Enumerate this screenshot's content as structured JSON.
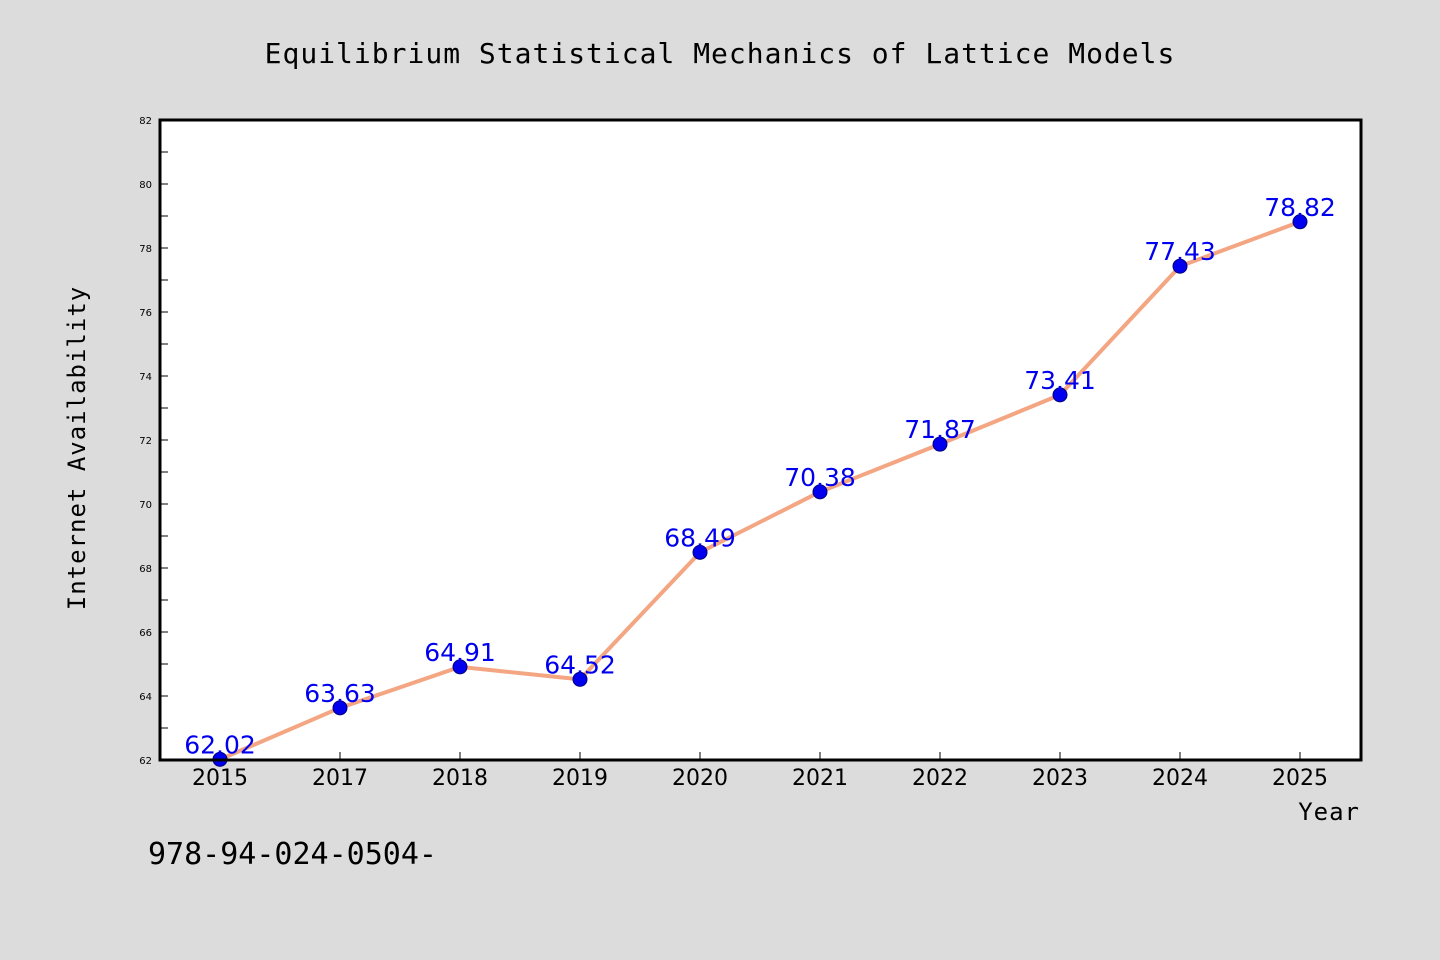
{
  "chart_data": {
    "type": "line",
    "title": "Equilibrium Statistical Mechanics of Lattice Models",
    "xlabel": "Year",
    "ylabel": "Internet Availability",
    "categories": [
      "2015",
      "2017",
      "2018",
      "2019",
      "2020",
      "2021",
      "2022",
      "2023",
      "2024",
      "2025"
    ],
    "series": [
      {
        "values": [
          62.02,
          63.63,
          64.91,
          64.52,
          68.49,
          70.38,
          71.87,
          73.41,
          77.43,
          78.82
        ],
        "data_labels": [
          "62.02",
          "63.63",
          "64.91",
          "64.52",
          "68.49",
          "70.38",
          "71.87",
          "73.41",
          "77.43",
          "78.82"
        ]
      }
    ],
    "ylim": [
      62,
      82
    ],
    "yticks": [
      "62",
      "64",
      "66",
      "68",
      "70",
      "72",
      "74",
      "76",
      "78",
      "80",
      "82"
    ],
    "grid": false,
    "legend": "none",
    "colors": {
      "line": "#f4a582",
      "marker": "#0000ee",
      "label": "#0000ee",
      "background": "#dcdcdc",
      "plot_background": "#ffffff"
    }
  },
  "footer": {
    "text": "978-94-024-0504-"
  }
}
